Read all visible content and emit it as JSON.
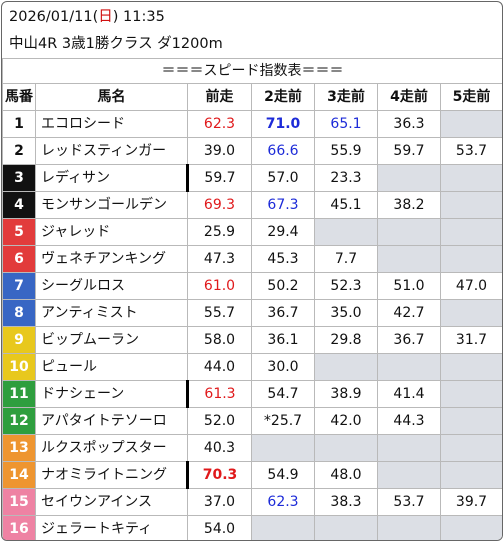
{
  "header": {
    "date": "2026/01/11",
    "weekday": "日",
    "time": "11:35",
    "race": "中山4R 3歳1勝クラス ダ1200m"
  },
  "table": {
    "title": "＝＝＝スピード指数表＝＝＝",
    "columns": [
      "馬番",
      "馬名",
      "前走",
      "2走前",
      "3走前",
      "4走前",
      "5走前"
    ],
    "colors": {
      "red": "#e0191b",
      "blue": "#1d2bd8",
      "blank": "#dcdfe5"
    },
    "rows": [
      {
        "num": "1",
        "name": "エコロシード",
        "bg": "#ffffff",
        "fg": "#111111",
        "mark": false,
        "values": [
          {
            "v": "62.3",
            "c": "red"
          },
          {
            "v": "71.0",
            "c": "blue",
            "b": true
          },
          {
            "v": "65.1",
            "c": "blue"
          },
          {
            "v": "36.3"
          },
          {
            "v": ""
          }
        ]
      },
      {
        "num": "2",
        "name": "レッドスティンガー",
        "bg": "#ffffff",
        "fg": "#111111",
        "mark": false,
        "values": [
          {
            "v": "39.0"
          },
          {
            "v": "66.6",
            "c": "blue"
          },
          {
            "v": "55.9"
          },
          {
            "v": "59.7"
          },
          {
            "v": "53.7"
          }
        ]
      },
      {
        "num": "3",
        "name": "レディサン",
        "bg": "#111111",
        "fg": "#ffffff",
        "mark": true,
        "values": [
          {
            "v": "59.7"
          },
          {
            "v": "57.0"
          },
          {
            "v": "23.3"
          },
          {
            "v": ""
          },
          {
            "v": ""
          }
        ]
      },
      {
        "num": "4",
        "name": "モンサンゴールデン",
        "bg": "#111111",
        "fg": "#ffffff",
        "mark": false,
        "values": [
          {
            "v": "69.3",
            "c": "red"
          },
          {
            "v": "67.3",
            "c": "blue"
          },
          {
            "v": "45.1"
          },
          {
            "v": "38.2"
          },
          {
            "v": ""
          }
        ]
      },
      {
        "num": "5",
        "name": "ジャレッド",
        "bg": "#e23b3b",
        "fg": "#ffffff",
        "mark": false,
        "values": [
          {
            "v": "25.9"
          },
          {
            "v": "29.4"
          },
          {
            "v": ""
          },
          {
            "v": ""
          },
          {
            "v": ""
          }
        ]
      },
      {
        "num": "6",
        "name": "ヴェネチアンキング",
        "bg": "#e23b3b",
        "fg": "#ffffff",
        "mark": false,
        "values": [
          {
            "v": "47.3"
          },
          {
            "v": "45.3"
          },
          {
            "v": "7.7"
          },
          {
            "v": ""
          },
          {
            "v": ""
          }
        ]
      },
      {
        "num": "7",
        "name": "シーグルロス",
        "bg": "#3866c4",
        "fg": "#ffffff",
        "mark": false,
        "values": [
          {
            "v": "61.0",
            "c": "red"
          },
          {
            "v": "50.2"
          },
          {
            "v": "52.3"
          },
          {
            "v": "51.0"
          },
          {
            "v": "47.0"
          }
        ]
      },
      {
        "num": "8",
        "name": "アンティミスト",
        "bg": "#3866c4",
        "fg": "#ffffff",
        "mark": false,
        "values": [
          {
            "v": "55.7"
          },
          {
            "v": "36.7"
          },
          {
            "v": "35.0"
          },
          {
            "v": "42.7"
          },
          {
            "v": ""
          }
        ]
      },
      {
        "num": "9",
        "name": "ビップムーラン",
        "bg": "#e8c81d",
        "fg": "#ffffff",
        "mark": false,
        "values": [
          {
            "v": "58.0"
          },
          {
            "v": "36.1"
          },
          {
            "v": "29.8"
          },
          {
            "v": "36.7"
          },
          {
            "v": "31.7"
          }
        ]
      },
      {
        "num": "10",
        "name": "ピュール",
        "bg": "#e8c81d",
        "fg": "#ffffff",
        "mark": false,
        "values": [
          {
            "v": "44.0"
          },
          {
            "v": "30.0"
          },
          {
            "v": ""
          },
          {
            "v": ""
          },
          {
            "v": ""
          }
        ]
      },
      {
        "num": "11",
        "name": "ドナシェーン",
        "bg": "#2e9e3e",
        "fg": "#ffffff",
        "mark": true,
        "values": [
          {
            "v": "61.3",
            "c": "red"
          },
          {
            "v": "54.7"
          },
          {
            "v": "38.9"
          },
          {
            "v": "41.4"
          },
          {
            "v": ""
          }
        ]
      },
      {
        "num": "12",
        "name": "アパタイトテソーロ",
        "bg": "#2e9e3e",
        "fg": "#ffffff",
        "mark": false,
        "values": [
          {
            "v": "52.0"
          },
          {
            "v": "*25.7"
          },
          {
            "v": "42.0"
          },
          {
            "v": "44.3"
          },
          {
            "v": ""
          }
        ]
      },
      {
        "num": "13",
        "name": "ルクスポップスター",
        "bg": "#ee9530",
        "fg": "#ffffff",
        "mark": false,
        "values": [
          {
            "v": "40.3"
          },
          {
            "v": ""
          },
          {
            "v": ""
          },
          {
            "v": ""
          },
          {
            "v": ""
          }
        ]
      },
      {
        "num": "14",
        "name": "ナオミライトニング",
        "bg": "#ee9530",
        "fg": "#ffffff",
        "mark": true,
        "values": [
          {
            "v": "70.3",
            "c": "red",
            "b": true
          },
          {
            "v": "54.9"
          },
          {
            "v": "48.0"
          },
          {
            "v": ""
          },
          {
            "v": ""
          }
        ]
      },
      {
        "num": "15",
        "name": "セイウンアインス",
        "bg": "#ee82a3",
        "fg": "#ffffff",
        "mark": false,
        "values": [
          {
            "v": "37.0"
          },
          {
            "v": "62.3",
            "c": "blue"
          },
          {
            "v": "38.3"
          },
          {
            "v": "53.7"
          },
          {
            "v": "39.7"
          }
        ]
      },
      {
        "num": "16",
        "name": "ジェラートキティ",
        "bg": "#ee82a3",
        "fg": "#ffffff",
        "mark": false,
        "values": [
          {
            "v": "54.0"
          },
          {
            "v": ""
          },
          {
            "v": ""
          },
          {
            "v": ""
          },
          {
            "v": ""
          }
        ]
      }
    ]
  }
}
